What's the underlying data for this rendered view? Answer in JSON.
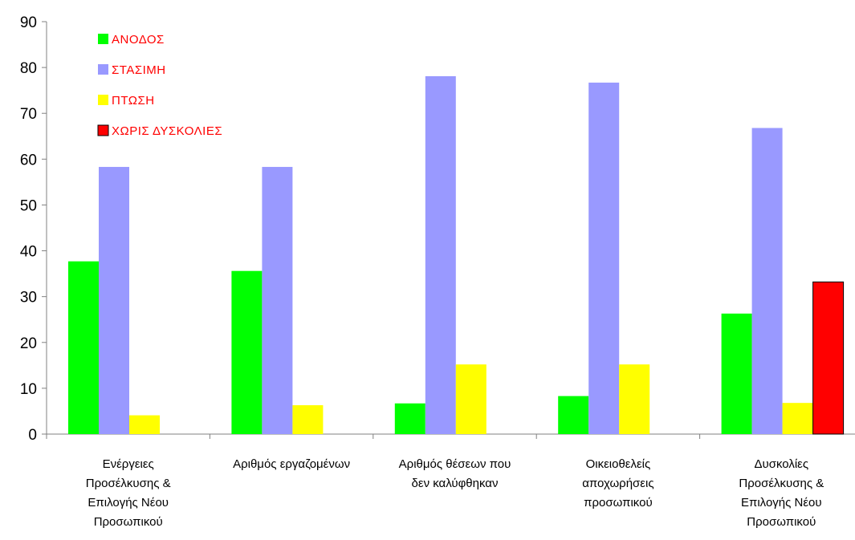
{
  "chart_data": {
    "type": "bar",
    "title": "",
    "xlabel": "",
    "ylabel": "",
    "ylim": [
      0,
      90
    ],
    "yticks": [
      0,
      10,
      20,
      30,
      40,
      50,
      60,
      70,
      80,
      90
    ],
    "grid": false,
    "legend_position": "top-left",
    "categories": [
      [
        "Ενέργειες",
        "Προσέλκυσης &",
        "Επιλογής Νέου",
        "Προσωπικού"
      ],
      [
        "Αριθμός εργαζομένων"
      ],
      [
        "Αριθμός θέσεων που",
        "δεν καλύφθηκαν"
      ],
      [
        "Οικειοθελείς",
        "αποχωρήσεις",
        "προσωπικού"
      ],
      [
        "Δυσκολίες",
        "Προσέλκυσης &",
        "Επιλογής Νέου",
        "Προσωπικού"
      ]
    ],
    "series": [
      {
        "name": "ΑΝΟΔΟΣ",
        "color": "#00ff00",
        "values": [
          37.7,
          35.6,
          6.7,
          8.3,
          26.3
        ]
      },
      {
        "name": "ΣΤΑΣΙΜΗ",
        "color": "#9999ff",
        "values": [
          58.3,
          58.3,
          78.1,
          76.7,
          66.8
        ]
      },
      {
        "name": "ΠΤΩΣΗ",
        "color": "#ffff00",
        "values": [
          4.1,
          6.3,
          15.2,
          15.2,
          6.8
        ]
      },
      {
        "name": "ΧΩΡΙΣ ΔΥΣΚΟΛΙΕΣ",
        "color": "#ff0000",
        "values": [
          null,
          null,
          null,
          null,
          33.2
        ]
      }
    ],
    "legend_label_color": "#ff0000"
  }
}
